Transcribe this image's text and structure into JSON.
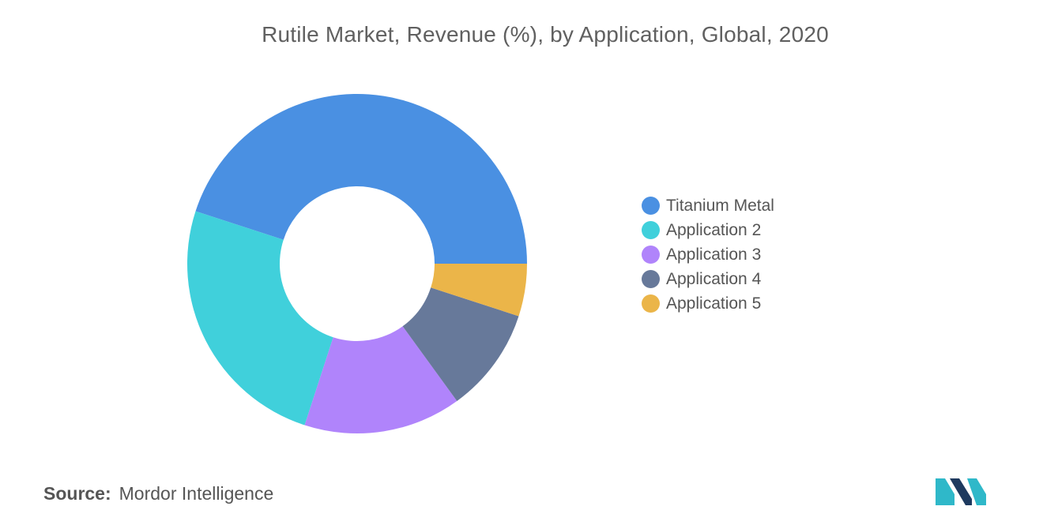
{
  "chart_data": {
    "type": "pie",
    "title": "Rutile Market, Revenue (%), by Application, Global, 2020",
    "donut": true,
    "legend_position": "right",
    "categories": [
      "Titanium Metal",
      "Application 2",
      "Application 3",
      "Application 4",
      "Application 5"
    ],
    "values": [
      45,
      25,
      15,
      10,
      5
    ],
    "colors": [
      "#4a90e2",
      "#40d0db",
      "#b084fb",
      "#67799a",
      "#ebb549"
    ]
  },
  "source": {
    "label": "Source:",
    "value": "Mordor Intelligence"
  },
  "logo": {
    "icon": "mordor-intelligence-logo-icon",
    "colors": [
      "#1e3a5f",
      "#2fb8c9"
    ]
  }
}
